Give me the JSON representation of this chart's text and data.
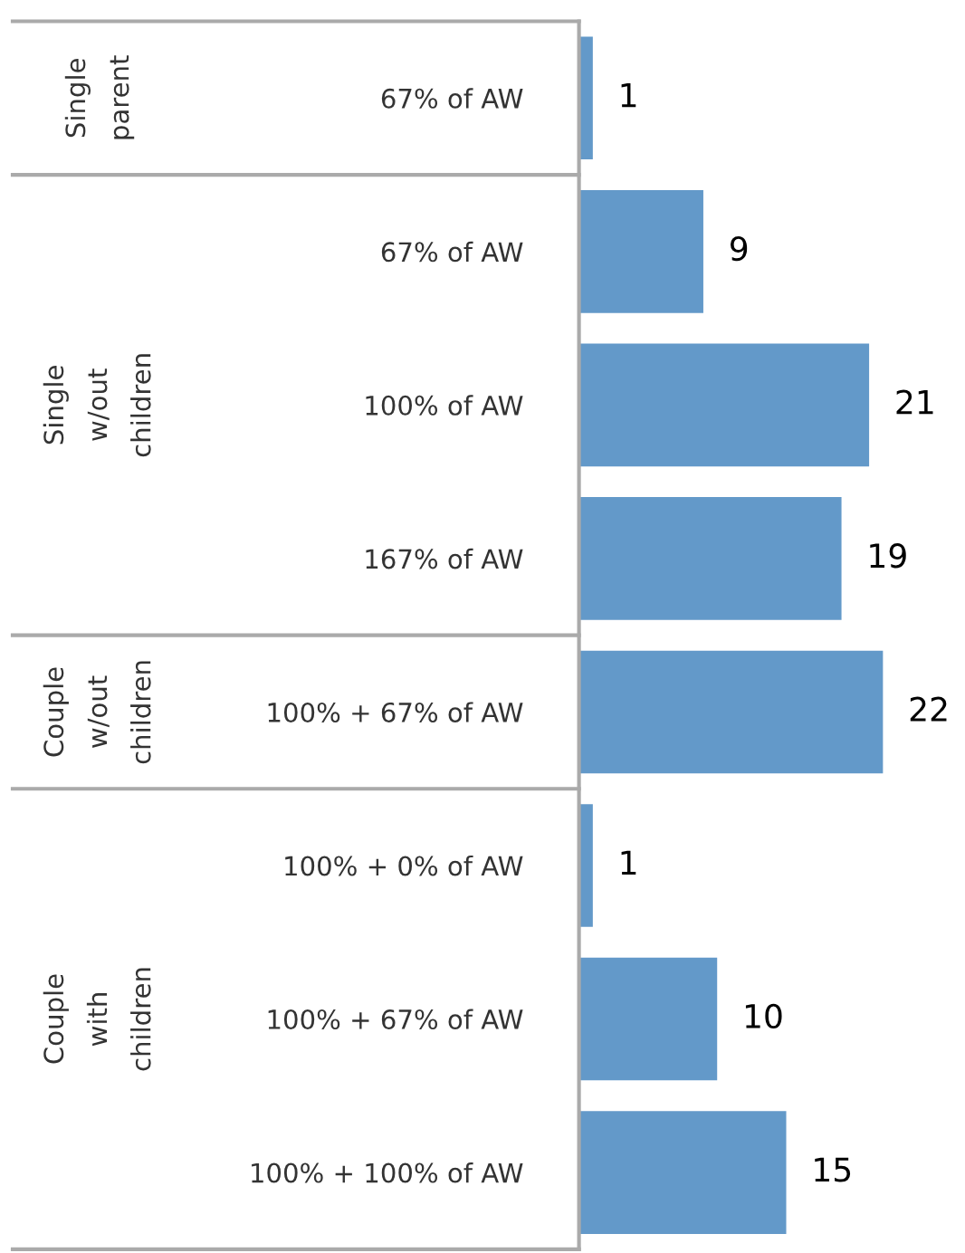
{
  "chart_data": {
    "type": "bar",
    "orientation": "horizontal",
    "data_labels": true,
    "grid": false,
    "legend": false,
    "categories": [
      "67% of AW",
      "67% of AW",
      "100% of AW",
      "167% of AW",
      "100% + 67% of AW",
      "100% + 0% of AW",
      "100% + 67% of AW",
      "100% + 100% of AW"
    ],
    "values": [
      1,
      9,
      21,
      19,
      22,
      1,
      10,
      15
    ],
    "color": "#6399c9",
    "annotations": [
      "Single parent",
      "Single w/out children",
      "Couple w/out children",
      "Couple with children"
    ]
  }
}
